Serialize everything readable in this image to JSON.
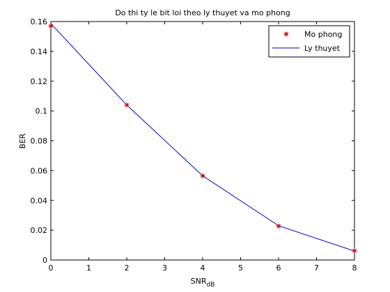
{
  "chart_data": {
    "type": "line",
    "title": "Do thi ty le bit loi theo ly thuyet va mo phong",
    "xlabel": "SNR",
    "xlabel_subscript": "dB",
    "ylabel": "BER",
    "xlim": [
      0,
      8
    ],
    "ylim": [
      0,
      0.16
    ],
    "xticks": [
      "0",
      "1",
      "2",
      "3",
      "4",
      "5",
      "6",
      "7",
      "8"
    ],
    "yticks": [
      "0",
      "0.02",
      "0.04",
      "0.06",
      "0.08",
      "0.1",
      "0.12",
      "0.14",
      "0.16"
    ],
    "grid": false,
    "legend_position": "top-right",
    "series": [
      {
        "name": "Mo phong",
        "style": "marker",
        "marker": "asterisk",
        "color": "#cc0000",
        "x": [
          0,
          2,
          4,
          6,
          8
        ],
        "values": [
          0.157,
          0.104,
          0.0565,
          0.0228,
          0.0062
        ]
      },
      {
        "name": "Ly thuyet",
        "style": "line",
        "color": "#0000cc",
        "x": [
          0,
          2,
          4,
          6,
          8
        ],
        "values": [
          0.1587,
          0.104,
          0.0565,
          0.023,
          0.006
        ]
      }
    ]
  }
}
